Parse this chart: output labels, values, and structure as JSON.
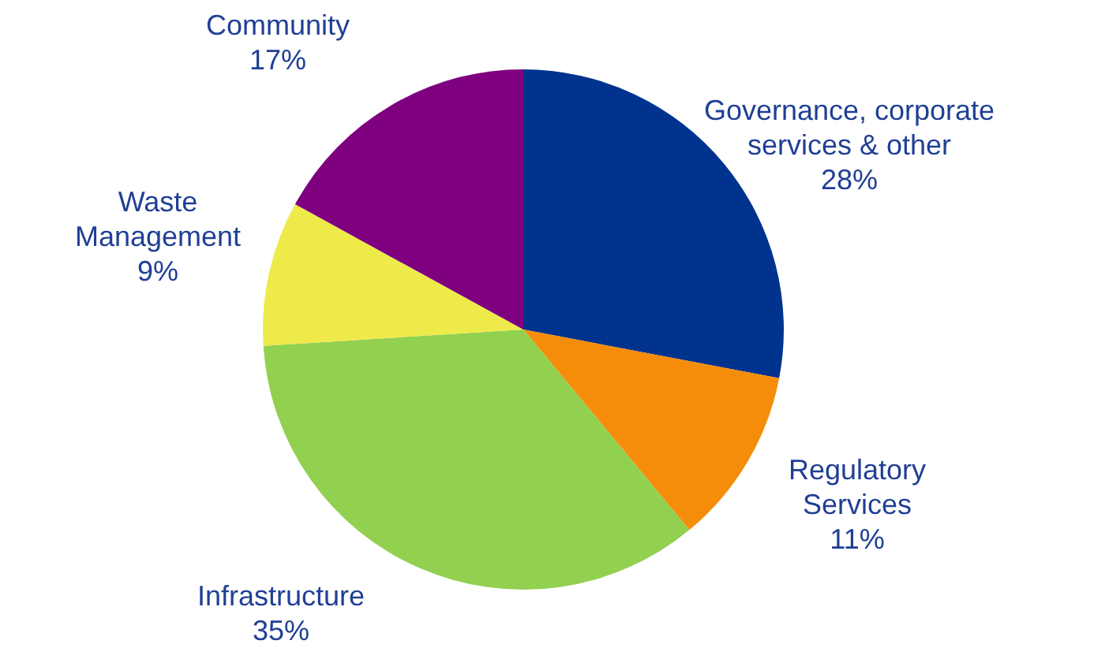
{
  "chart_data": {
    "type": "pie",
    "categories": [
      "Governance, corporate services & other",
      "Regulatory Services",
      "Infrastructure",
      "Waste Management",
      "Community"
    ],
    "values": [
      28,
      11,
      35,
      9,
      17
    ],
    "value_labels": [
      "28%",
      "11%",
      "35%",
      "9%",
      "17%"
    ],
    "colors": [
      "#00338d",
      "#f68d0a",
      "#92d050",
      "#eeea4a",
      "#7f007f"
    ],
    "legend": false
  }
}
